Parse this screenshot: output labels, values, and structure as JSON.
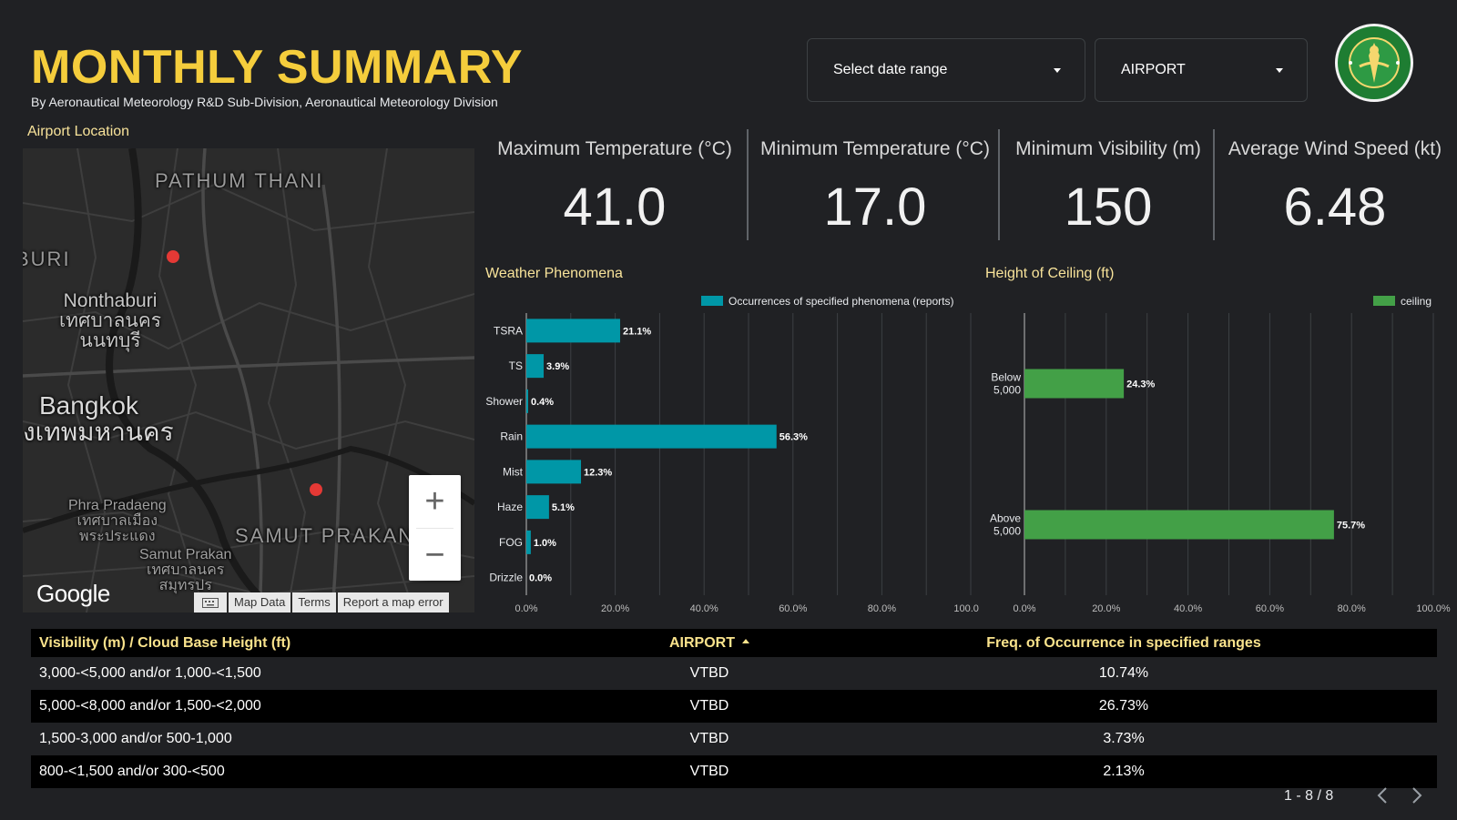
{
  "header": {
    "title": "MONTHLY SUMMARY",
    "subtitle": "By Aeronautical Meteorology R&D Sub-Division, Aeronautical Meteorology Division"
  },
  "filters": {
    "date_range_label": "Select date range",
    "airport_label": "AIRPORT"
  },
  "logo": {
    "icon": "meteorological-department-seal",
    "color": "#1e7d32"
  },
  "map": {
    "label": "Airport Location",
    "places": {
      "pathum_thani": "PATHUM THANI",
      "uri": "BURI",
      "nonthaburi_en": "Nonthaburi",
      "nonthaburi_th1": "เทศบาลนคร",
      "nonthaburi_th2": "นนทบุรี",
      "bangkok_en": "Bangkok",
      "bangkok_th": "งเทพมหานคร",
      "phra_pradaeng_en": "Phra Pradaeng",
      "phra_pradaeng_th1": "เทศบาลเมือง",
      "phra_pradaeng_th2": "พระประแดง",
      "samut_prakan_region": "SAMUT PRAKAN",
      "samut_prakan_en": "Samut Prakan",
      "samut_prakan_th1": "เทศบาลนคร",
      "samut_prakan_th2": "สมุทรปร"
    },
    "pin_color": "#e53935",
    "zoom_in": "+",
    "zoom_out": "−",
    "google": "Google",
    "attribution": {
      "map_data": "Map Data",
      "terms": "Terms",
      "report": "Report a map error"
    }
  },
  "kpis": [
    {
      "label": "Maximum Temperature (°C)",
      "value": "41.0"
    },
    {
      "label": "Minimum Temperature (°C)",
      "value": "17.0"
    },
    {
      "label": "Minimum Visibility (m)",
      "value": "150"
    },
    {
      "label": "Average Wind Speed (kt)",
      "value": "6.48"
    }
  ],
  "chart_data": [
    {
      "type": "bar",
      "orientation": "horizontal",
      "title": "Weather Phenomena",
      "categories": [
        "TSRA",
        "TS",
        "Shower",
        "Rain",
        "Mist",
        "Haze",
        "FOG",
        "Drizzle"
      ],
      "series": [
        {
          "name": "Occurrences of specified phenomena (reports)",
          "values": [
            21.1,
            3.9,
            0.4,
            56.3,
            12.3,
            5.1,
            1.0,
            0.0
          ],
          "color": "#0097a7"
        }
      ],
      "data_labels": [
        "21.1%",
        "3.9%",
        "0.4%",
        "56.3%",
        "12.3%",
        "5.1%",
        "1.0%",
        "0.0%"
      ],
      "x_ticks": [
        "0.0%",
        "20.0%",
        "40.0%",
        "60.0%",
        "80.0%",
        "100.0%"
      ],
      "xlim": [
        0,
        100
      ],
      "grid": true,
      "legend": "top-right"
    },
    {
      "type": "bar",
      "orientation": "horizontal",
      "title": "Height of Ceiling (ft)",
      "categories": [
        [
          "Below",
          "5,000"
        ],
        [
          "Above",
          "5,000"
        ]
      ],
      "series": [
        {
          "name": "ceiling",
          "values": [
            24.3,
            75.7
          ],
          "color": "#43a047"
        }
      ],
      "data_labels": [
        "24.3%",
        "75.7%"
      ],
      "x_ticks": [
        "0.0%",
        "20.0%",
        "40.0%",
        "60.0%",
        "80.0%",
        "100.0%"
      ],
      "xlim": [
        0,
        100
      ],
      "grid": true,
      "legend": "top-right"
    }
  ],
  "table": {
    "headers": [
      "Visibility (m) / Cloud Base Height (ft)",
      "AIRPORT",
      "Freq. of Occurrence in specified ranges"
    ],
    "rows": [
      [
        "3,000-<5,000 and/or 1,000-<1,500",
        "VTBD",
        "10.74%"
      ],
      [
        "5,000-<8,000 and/or 1,500-<2,000",
        "VTBD",
        "26.73%"
      ],
      [
        "1,500-3,000 and/or 500-1,000",
        "VTBD",
        "3.73%"
      ],
      [
        "800-<1,500 and/or 300-<500",
        "VTBD",
        "2.13%"
      ]
    ],
    "pager": "1 - 8 / 8"
  }
}
